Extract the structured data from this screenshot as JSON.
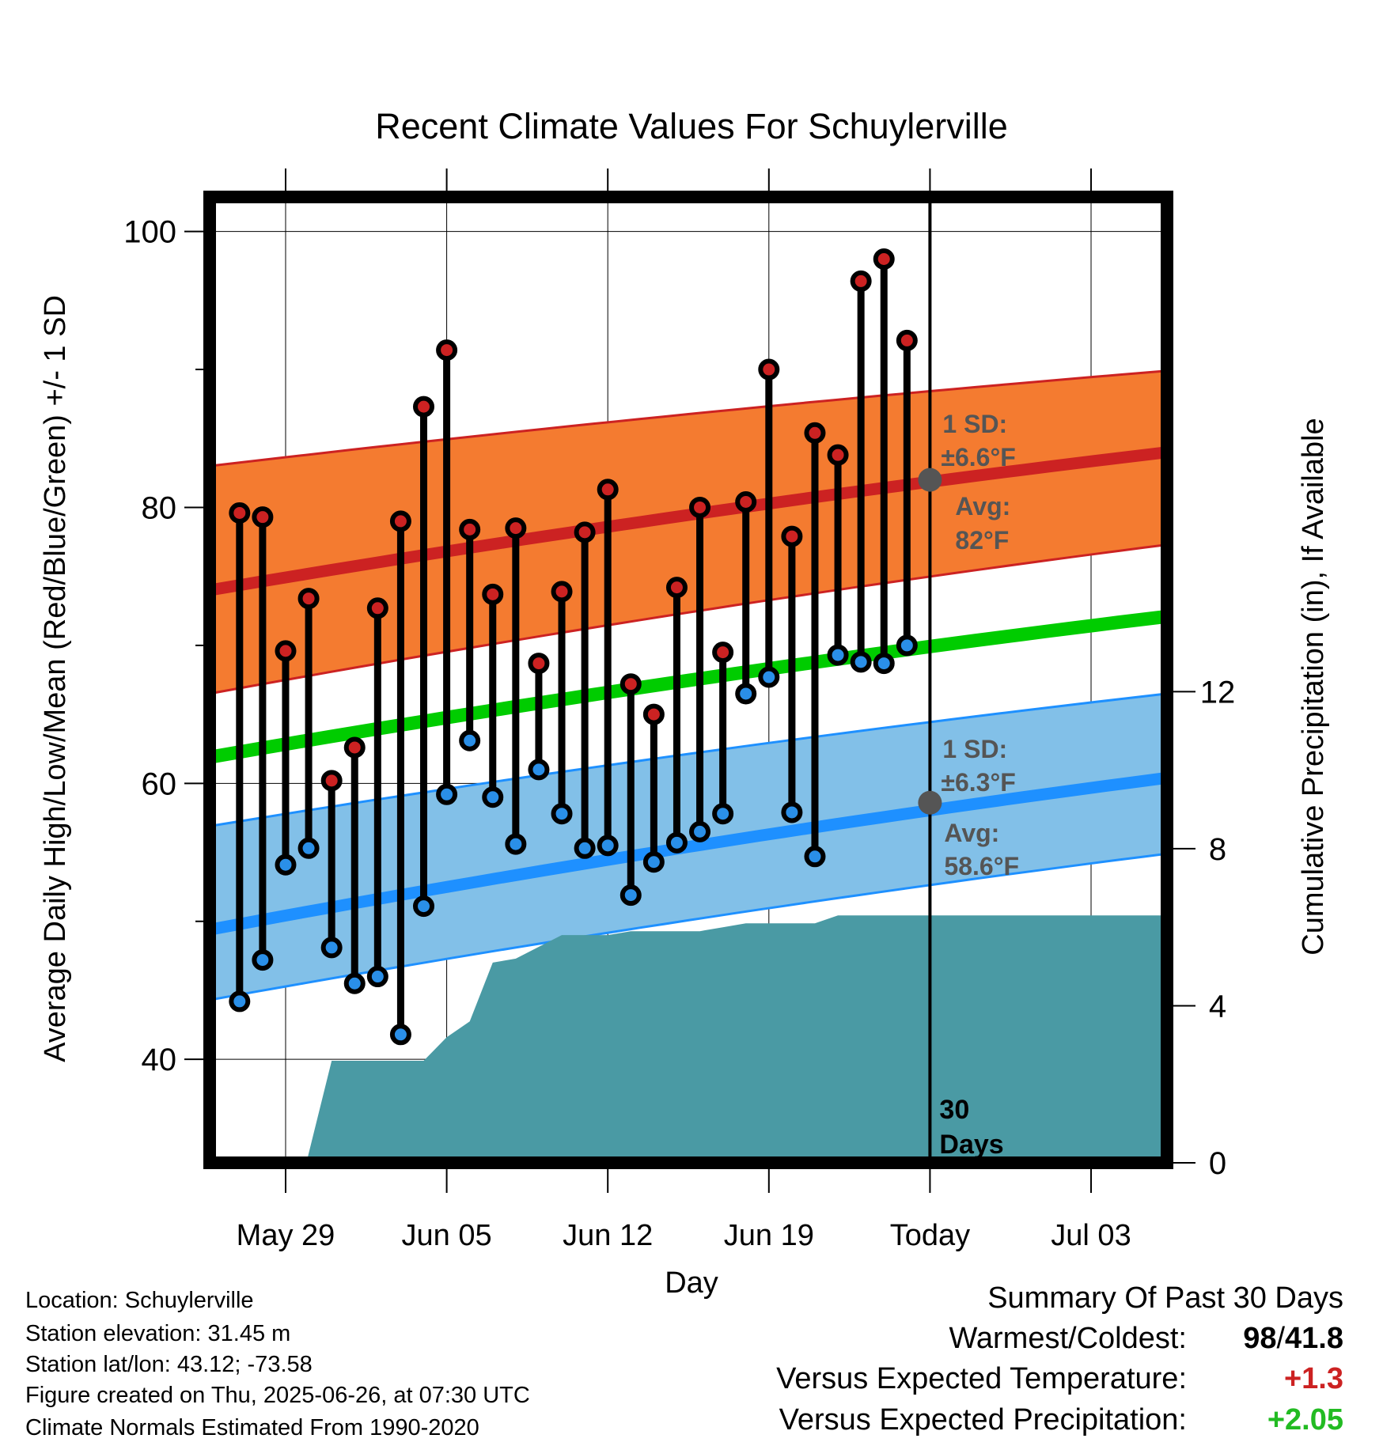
{
  "chart_data": {
    "type": "line",
    "title": "Recent Climate Values For Schuylerville",
    "xlabel": "Day",
    "ylabel_left": "Average Daily High/Low/Mean (Red/Blue/Green) +/- 1 SD",
    "ylabel_right": "Cumulative Precipitation (in), If Available",
    "x_tick_labels": [
      "May 29",
      "Jun 05",
      "Jun 12",
      "Jun 19",
      "Today",
      "Jul 03"
    ],
    "x_tick_days": [
      3,
      10,
      17,
      24,
      31,
      38
    ],
    "xlim": [
      -0.3,
      41.3
    ],
    "ylim_left": [
      32.5,
      102.5
    ],
    "yticks_left": [
      40,
      60,
      80,
      100
    ],
    "ylim_right": [
      0,
      24.6
    ],
    "yticks_right": [
      0,
      4,
      8,
      12
    ],
    "grid": true,
    "obs_days": [
      1,
      2,
      3,
      4,
      5,
      6,
      7,
      8,
      9,
      10,
      11,
      12,
      13,
      14,
      15,
      16,
      17,
      18,
      19,
      20,
      21,
      22,
      23,
      24,
      25,
      26,
      27,
      28,
      29,
      30
    ],
    "series": [
      {
        "name": "High",
        "color": "#cc2222",
        "values": [
          79.6,
          79.3,
          69.6,
          73.4,
          60.2,
          62.6,
          72.7,
          79,
          87.3,
          91.4,
          78.4,
          73.7,
          78.5,
          68.7,
          73.9,
          78.2,
          81.3,
          67.2,
          65,
          74.2,
          80,
          69.5,
          80.4,
          90,
          77.9,
          85.4,
          83.8,
          96.4,
          98,
          92.1
        ]
      },
      {
        "name": "Low",
        "color": "#2a8fe8",
        "values": [
          44.2,
          47.2,
          54.1,
          55.3,
          48.1,
          45.5,
          46,
          41.8,
          51.1,
          59.2,
          63.1,
          59,
          55.6,
          61,
          57.8,
          55.3,
          55.5,
          51.9,
          54.3,
          55.7,
          56.5,
          57.8,
          66.5,
          67.7,
          57.9,
          54.7,
          69.3,
          68.8,
          68.7,
          70
        ]
      }
    ],
    "normals": {
      "start_day": -0.3,
      "end_day": 41.3,
      "high_mean": [
        74,
        84
      ],
      "high_upper": [
        83,
        89.9
      ],
      "high_lower": [
        66.5,
        77.3
      ],
      "low_mean": [
        49.4,
        60.4
      ],
      "low_upper": [
        56.9,
        66.5
      ],
      "low_lower": [
        44.3,
        54.9
      ],
      "mean": [
        61.9,
        72.1
      ]
    },
    "precip": {
      "days": [
        3.9,
        5,
        9,
        10,
        11,
        12,
        13,
        14,
        15,
        16,
        17,
        18,
        19,
        20,
        21,
        22,
        23,
        24,
        25,
        26,
        27,
        41.3
      ],
      "values": [
        0,
        2.6,
        2.6,
        3.2,
        3.6,
        5.1,
        5.2,
        5.5,
        5.8,
        5.8,
        5.8,
        5.9,
        5.9,
        5.9,
        5.9,
        6,
        6.1,
        6.1,
        6.1,
        6.1,
        6.3,
        6.3
      ],
      "color": "#4a9aa4"
    },
    "annotations": {
      "high_sd": "1 SD:",
      "high_sd_value": "±6.6°F",
      "high_avg": "Avg:",
      "high_avg_value": "82°F",
      "high_avg_temp": 82,
      "low_sd": "1 SD:",
      "low_sd_value": "±6.3°F",
      "low_avg": "Avg:",
      "low_avg_value": "58.6°F",
      "low_avg_temp": 58.6,
      "window_line1": "30",
      "window_line2": "Days",
      "today_day": 31
    },
    "colors": {
      "high_band": "#f47b30",
      "high_line": "#cc2222",
      "low_band": "#82c0e8",
      "low_line": "#1e90ff",
      "mean_line": "#00cc00",
      "annotation": "#555555"
    }
  },
  "info": {
    "location": "Location: Schuylerville",
    "elevation": "Station elevation: 31.45 m",
    "latlon": "Station lat/lon: 43.12; -73.58",
    "created": "Figure created on Thu, 2025-06-26, at 07:30 UTC",
    "normals": "Climate Normals Estimated From 1990-2020"
  },
  "summary": {
    "title": "Summary Of Past 30 Days",
    "warmest_label": "Warmest/Coldest:",
    "warmest_value_hi": "98",
    "warmest_sep": "/",
    "warmest_value_lo": "41.8",
    "temp_label": "Versus Expected Temperature:",
    "temp_value": "+1.3",
    "temp_color": "#cc2222",
    "precip_label": "Versus Expected Precipitation:",
    "precip_value": "+2.05",
    "precip_color": "#22bb22"
  }
}
